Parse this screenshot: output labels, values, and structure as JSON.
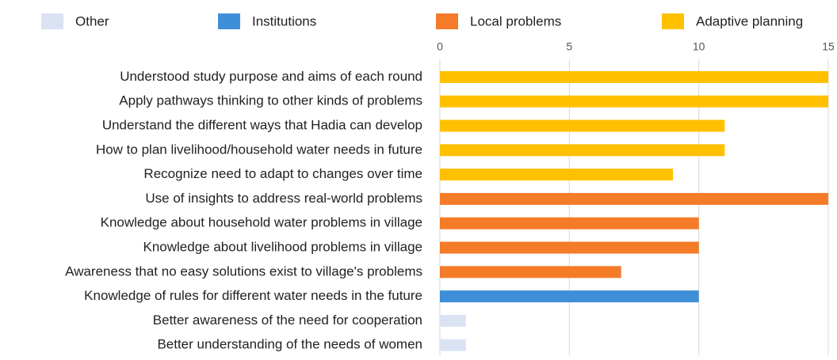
{
  "chart_data": {
    "type": "barh",
    "categories": [
      "Understood study purpose and aims of each round",
      "Apply pathways thinking to other kinds of problems",
      "Understand the different ways that Hadia can develop",
      "How to plan  livelihood/household water needs in future",
      "Recognize  need to adapt to changes over time",
      "Use of insights to address real-world problems",
      "Knowledge about household water problems in village",
      "Knowledge about livelihood problems in village",
      "Awareness that no easy solutions exist to village's problems",
      "Knowledge of rules for different water needs in the future",
      "Better awareness of the need for cooperation",
      "Better understanding of the needs of women"
    ],
    "series": [
      {
        "name": "Other",
        "color": "#dae3f3",
        "values": [
          null,
          null,
          null,
          null,
          null,
          null,
          null,
          null,
          null,
          null,
          1,
          1
        ]
      },
      {
        "name": "Institutions",
        "color": "#3f8fd8",
        "values": [
          null,
          null,
          null,
          null,
          null,
          null,
          null,
          null,
          null,
          10,
          null,
          null
        ]
      },
      {
        "name": "Local problems",
        "color": "#f47b28",
        "values": [
          null,
          null,
          null,
          null,
          null,
          15,
          10,
          10,
          7,
          null,
          null,
          null
        ]
      },
      {
        "name": "Adaptive planning",
        "color": "#ffc000",
        "values": [
          15,
          15,
          11,
          11,
          9,
          null,
          null,
          null,
          null,
          null,
          null,
          null
        ]
      }
    ],
    "xlim": [
      0,
      15
    ],
    "xticks": [
      0,
      5,
      10,
      15
    ],
    "grid": true,
    "legend": "top"
  }
}
